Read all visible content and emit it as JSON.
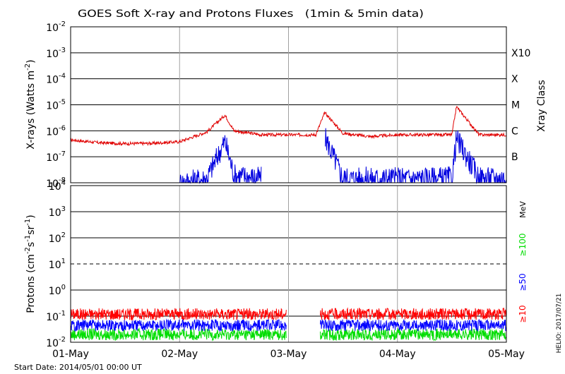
{
  "title": "GOES Soft X-ray and Protons Fluxes   (1min & 5min data)",
  "footer": {
    "start_date": "Start Date: 2014/05/01 00:00 UT",
    "credit": "HELIO: 2017/07/21"
  },
  "x_tick_labels": [
    "01-May",
    "02-May",
    "03-May",
    "04-May",
    "05-May"
  ],
  "colors": {
    "xray_long": "#e00000",
    "xray_short": "#0000e0",
    "p10": "#ff0000",
    "p50": "#0000ff",
    "p100": "#00dd00",
    "grid": "#000000",
    "day_lines": "#a0a0a0"
  },
  "chart_data": [
    {
      "type": "line",
      "title": "GOES Soft X-ray and Protons Fluxes   (1min & 5min data)",
      "ylabel": "X-rays (Watts m^-2)",
      "ylabel_parts": {
        "main": "X-rays (Watts m",
        "exp": "-2",
        "close": ")"
      },
      "yscale": "log",
      "ylim": [
        1e-08,
        0.01
      ],
      "y_tick_labels": [
        {
          "base": "10",
          "exp": "-2"
        },
        {
          "base": "10",
          "exp": "-3"
        },
        {
          "base": "10",
          "exp": "-4"
        },
        {
          "base": "10",
          "exp": "-5"
        },
        {
          "base": "10",
          "exp": "-6"
        },
        {
          "base": "10",
          "exp": "-7"
        },
        {
          "base": "10",
          "exp": "-8"
        }
      ],
      "right_axis_title": "Xray Class",
      "right_labels": [
        "X10",
        "X",
        "M",
        "C",
        "B"
      ],
      "grid": true,
      "x": [
        "2014-05-01",
        "2014-05-01 06:00",
        "2014-05-01 12:00",
        "2014-05-01 18:00",
        "2014-05-02",
        "2014-05-02 06:00",
        "2014-05-02 10:00",
        "2014-05-02 12:00",
        "2014-05-02 18:00",
        "2014-05-03",
        "2014-05-03 06:00",
        "2014-05-03 08:00",
        "2014-05-03 12:00",
        "2014-05-03 18:00",
        "2014-05-04",
        "2014-05-04 06:00",
        "2014-05-04 12:00",
        "2014-05-04 13:00",
        "2014-05-04 18:00",
        "2014-05-05"
      ],
      "series": [
        {
          "values": [
            4.5e-07,
            3.5e-07,
            3.2e-07,
            3.3e-07,
            3.8e-07,
            9e-07,
            4e-06,
            1e-06,
            7e-07,
            7e-07,
            7e-07,
            5e-06,
            8e-07,
            6e-07,
            7e-07,
            7e-07,
            7e-07,
            8.5e-06,
            7e-07,
            7e-07
          ]
        },
        {
          "values": [
            null,
            null,
            null,
            null,
            1e-08,
            1.5e-08,
            4e-07,
            2e-08,
            1.5e-08,
            null,
            null,
            6e-07,
            1.5e-08,
            1.5e-08,
            1.5e-08,
            1.5e-08,
            1.5e-08,
            5e-07,
            1.5e-08,
            1.5e-08
          ]
        }
      ]
    },
    {
      "type": "line",
      "ylabel": "Protons (cm^-2 s^-1 sr^-1)",
      "ylabel_parts": {
        "main": "Protons (cm",
        "e1": "-2",
        "s": "s",
        "e2": "-1",
        "sr": "sr",
        "e3": "-1",
        "close": ")"
      },
      "yscale": "log",
      "ylim": [
        0.01,
        10000
      ],
      "y_tick_labels": [
        {
          "base": "10",
          "exp": "4"
        },
        {
          "base": "10",
          "exp": "3"
        },
        {
          "base": "10",
          "exp": "2"
        },
        {
          "base": "10",
          "exp": "1"
        },
        {
          "base": "10",
          "exp": "0"
        },
        {
          "base": "10",
          "exp": "-1"
        },
        {
          "base": "10",
          "exp": "-2"
        }
      ],
      "right_unit": "MeV",
      "grid": true,
      "dashed_threshold": 10,
      "x": [
        "2014-05-01",
        "2014-05-01 12:00",
        "2014-05-02",
        "2014-05-02 12:00",
        "2014-05-02 23:30",
        "2014-05-03 07:00",
        "2014-05-03 12:00",
        "2014-05-04",
        "2014-05-04 12:00",
        "2014-05-04 23:59"
      ],
      "series": [
        {
          "name": "≥10",
          "values": [
            0.12,
            0.12,
            0.12,
            0.12,
            0.12,
            0.12,
            0.12,
            0.12,
            0.12,
            0.12
          ]
        },
        {
          "name": "≥50",
          "values": [
            0.045,
            0.045,
            0.045,
            0.045,
            0.045,
            0.045,
            0.045,
            0.045,
            0.045,
            0.045
          ]
        },
        {
          "name": "≥100",
          "values": [
            0.02,
            0.02,
            0.02,
            0.02,
            0.02,
            0.02,
            0.02,
            0.02,
            0.02,
            0.02
          ]
        }
      ],
      "gap": [
        "2014-05-02 23:30",
        "2014-05-03 07:00"
      ]
    }
  ]
}
